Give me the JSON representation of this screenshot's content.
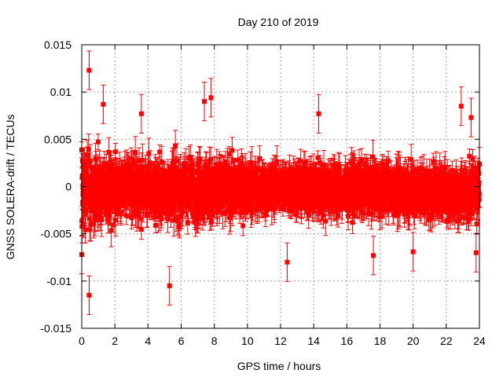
{
  "chart_data": {
    "type": "scatter",
    "title": "Day 210 of 2019",
    "xlabel": "GPS time / hours",
    "ylabel": "GNSS SOLERA-drift / TECUs",
    "xlim": [
      0,
      24
    ],
    "ylim": [
      -0.015,
      0.015
    ],
    "x_ticks": [
      0,
      2,
      4,
      6,
      8,
      10,
      12,
      14,
      16,
      18,
      20,
      22,
      24
    ],
    "y_ticks": [
      -0.015,
      -0.01,
      -0.005,
      0,
      0.005,
      0.01,
      0.015
    ],
    "x_tick_labels": [
      "0",
      "2",
      "4",
      "6",
      "8",
      "10",
      "12",
      "14",
      "16",
      "18",
      "20",
      "22",
      "24"
    ],
    "y_tick_labels": [
      "-0.015",
      "-0.01",
      "-0.005",
      "0",
      "0.005",
      "0.01",
      "0.015"
    ],
    "grid": true,
    "legend": "none",
    "error_bars": true,
    "series_color": "#ff0000",
    "marker": "square",
    "series": [
      {
        "x_start": 0,
        "x_end": 24,
        "x_step_hours": 0.0083333,
        "envelope": {
          "hours": [
            0,
            2,
            4,
            6,
            8,
            10,
            12,
            14,
            16,
            18,
            20,
            22,
            24
          ],
          "upper": [
            0.006,
            0.0055,
            0.005,
            0.0055,
            0.0055,
            0.004,
            0.0035,
            0.0045,
            0.004,
            0.004,
            0.004,
            0.004,
            0.0045
          ],
          "lower": [
            -0.0065,
            -0.0058,
            -0.0055,
            -0.006,
            -0.006,
            -0.0045,
            -0.0038,
            -0.0048,
            -0.0045,
            -0.0045,
            -0.0048,
            -0.0052,
            -0.0055
          ]
        },
        "error_bar_half_width": 0.0012,
        "notable_points": [
          {
            "x": 0.45,
            "y": 0.0123
          },
          {
            "x": 0.45,
            "y": -0.0115
          },
          {
            "x": 5.3,
            "y": -0.0105
          },
          {
            "x": 7.8,
            "y": 0.0094
          },
          {
            "x": 7.4,
            "y": 0.009
          },
          {
            "x": 1.3,
            "y": 0.0087
          },
          {
            "x": 14.3,
            "y": 0.0077
          },
          {
            "x": 22.9,
            "y": 0.0085
          },
          {
            "x": 23.5,
            "y": 0.0073
          },
          {
            "x": 12.4,
            "y": -0.008
          },
          {
            "x": 0.0,
            "y": -0.0072
          },
          {
            "x": 23.8,
            "y": -0.007
          },
          {
            "x": 3.6,
            "y": 0.0077
          },
          {
            "x": 17.6,
            "y": -0.0073
          },
          {
            "x": 20.0,
            "y": -0.0069
          }
        ]
      }
    ]
  }
}
